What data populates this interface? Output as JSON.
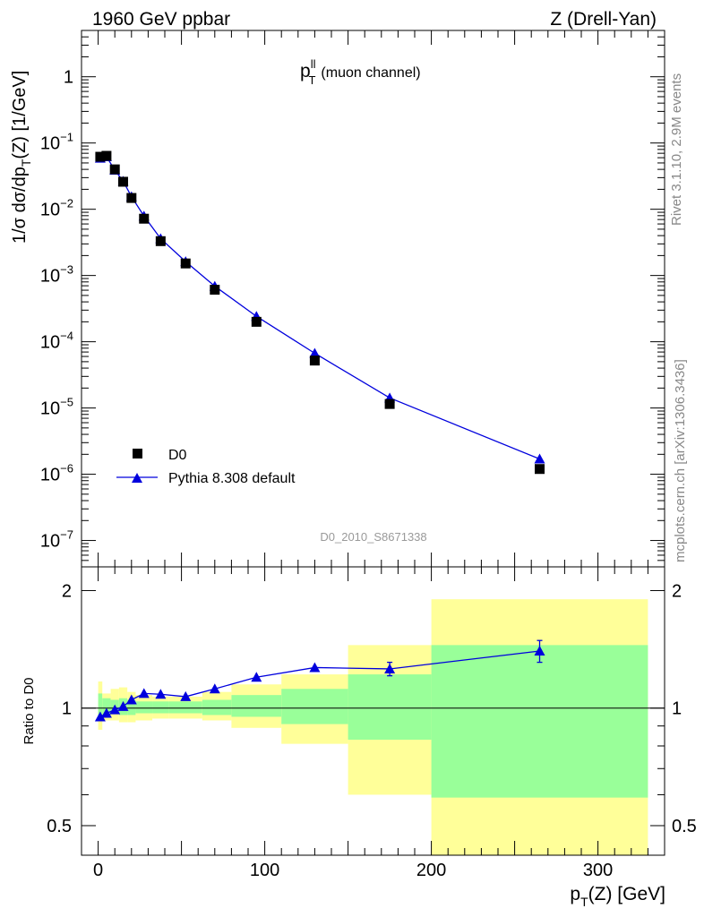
{
  "header": {
    "left": "1960 GeV ppbar",
    "right": "Z (Drell-Yan)"
  },
  "side": {
    "top": "Rivet 3.1.10,  2.9M events",
    "bottom": "mcplots.cern.ch [arXiv:1306.3436]"
  },
  "chart_data": [
    {
      "type": "scatter",
      "title": "(muon channel)",
      "title_main": "p",
      "title_sup": "ll",
      "title_sub": "T",
      "ylabel": "1/σ  dσ/dp",
      "ylabel_sub": "T",
      "ylabel_tail": "(Z) [1/GeV]",
      "y_scale": "log",
      "xlim": [
        -10,
        340
      ],
      "ylim": [
        4e-08,
        5
      ],
      "y_ticks": [
        {
          "v": 1,
          "b": "1",
          "e": ""
        },
        {
          "v": 0.1,
          "b": "10",
          "e": "−1"
        },
        {
          "v": 0.01,
          "b": "10",
          "e": "−2"
        },
        {
          "v": 0.001,
          "b": "10",
          "e": "−3"
        },
        {
          "v": 0.0001,
          "b": "10",
          "e": "−4"
        },
        {
          "v": 1e-05,
          "b": "10",
          "e": "−5"
        },
        {
          "v": 1e-06,
          "b": "10",
          "e": "−6"
        },
        {
          "v": 1e-07,
          "b": "10",
          "e": "−7"
        }
      ],
      "watermark": "D0_2010_S8671338",
      "legend": {
        "position": "bottom-left",
        "entries": [
          "D0",
          "Pythia 8.308 default"
        ]
      },
      "series": [
        {
          "name": "D0",
          "marker": "square",
          "color": "#000000",
          "x": [
            1.25,
            5,
            10,
            15,
            20,
            27.5,
            37.5,
            52.5,
            70,
            95,
            130,
            175,
            265
          ],
          "y": [
            0.062,
            0.064,
            0.04,
            0.026,
            0.0148,
            0.0072,
            0.0033,
            0.00152,
            0.00061,
            0.0002,
            5.2e-05,
            1.15e-05,
            1.2e-06
          ]
        },
        {
          "name": "Pythia 8.308 default",
          "marker": "triangle",
          "color": "#0000dd",
          "x": [
            1.25,
            5,
            10,
            15,
            20,
            27.5,
            37.5,
            52.5,
            70,
            95,
            130,
            175,
            265
          ],
          "y": [
            0.059,
            0.062,
            0.039,
            0.0265,
            0.0155,
            0.0079,
            0.0036,
            0.00162,
            0.00069,
            0.000242,
            6.7e-05,
            1.42e-05,
            1.7e-06
          ]
        }
      ]
    },
    {
      "type": "line",
      "ylabel": "Ratio to D0",
      "xlabel": "p",
      "xlabel_sub": "T",
      "xlabel_tail": "(Z) [GeV]",
      "xlim": [
        -10,
        340
      ],
      "ylim": [
        0.42,
        2.3
      ],
      "y_scale": "log",
      "x_ticks": [
        0,
        100,
        200,
        300
      ],
      "y_ticks": [
        0.5,
        1,
        2
      ],
      "bands": {
        "edges": [
          0,
          2.5,
          7.5,
          12.5,
          17.5,
          22.5,
          32.5,
          42.5,
          62.5,
          80,
          110,
          150,
          200,
          330
        ],
        "yellow_lo": [
          0.88,
          0.93,
          0.93,
          0.92,
          0.92,
          0.93,
          0.94,
          0.94,
          0.93,
          0.89,
          0.81,
          0.6,
          0.35
        ],
        "yellow_hi": [
          1.17,
          1.09,
          1.12,
          1.13,
          1.1,
          1.08,
          1.07,
          1.07,
          1.1,
          1.15,
          1.22,
          1.45,
          1.9
        ],
        "green_lo": [
          0.93,
          0.96,
          0.97,
          0.96,
          0.96,
          0.97,
          0.97,
          0.97,
          0.96,
          0.95,
          0.91,
          0.83,
          0.59
        ],
        "green_hi": [
          1.09,
          1.06,
          1.05,
          1.06,
          1.05,
          1.04,
          1.04,
          1.04,
          1.05,
          1.08,
          1.12,
          1.22,
          1.45
        ]
      },
      "series": [
        {
          "name": "Pythia 8.308 default",
          "color": "#0000dd",
          "x": [
            1.25,
            5,
            10,
            15,
            20,
            27.5,
            37.5,
            52.5,
            70,
            95,
            130,
            175,
            265
          ],
          "y": [
            0.95,
            0.97,
            0.99,
            1.01,
            1.05,
            1.09,
            1.085,
            1.07,
            1.12,
            1.2,
            1.27,
            1.26,
            1.4
          ],
          "yerr": [
            0.01,
            0.01,
            0.01,
            0.01,
            0.01,
            0.01,
            0.01,
            0.01,
            0.012,
            0.015,
            0.02,
            0.05,
            0.09
          ]
        }
      ]
    }
  ]
}
